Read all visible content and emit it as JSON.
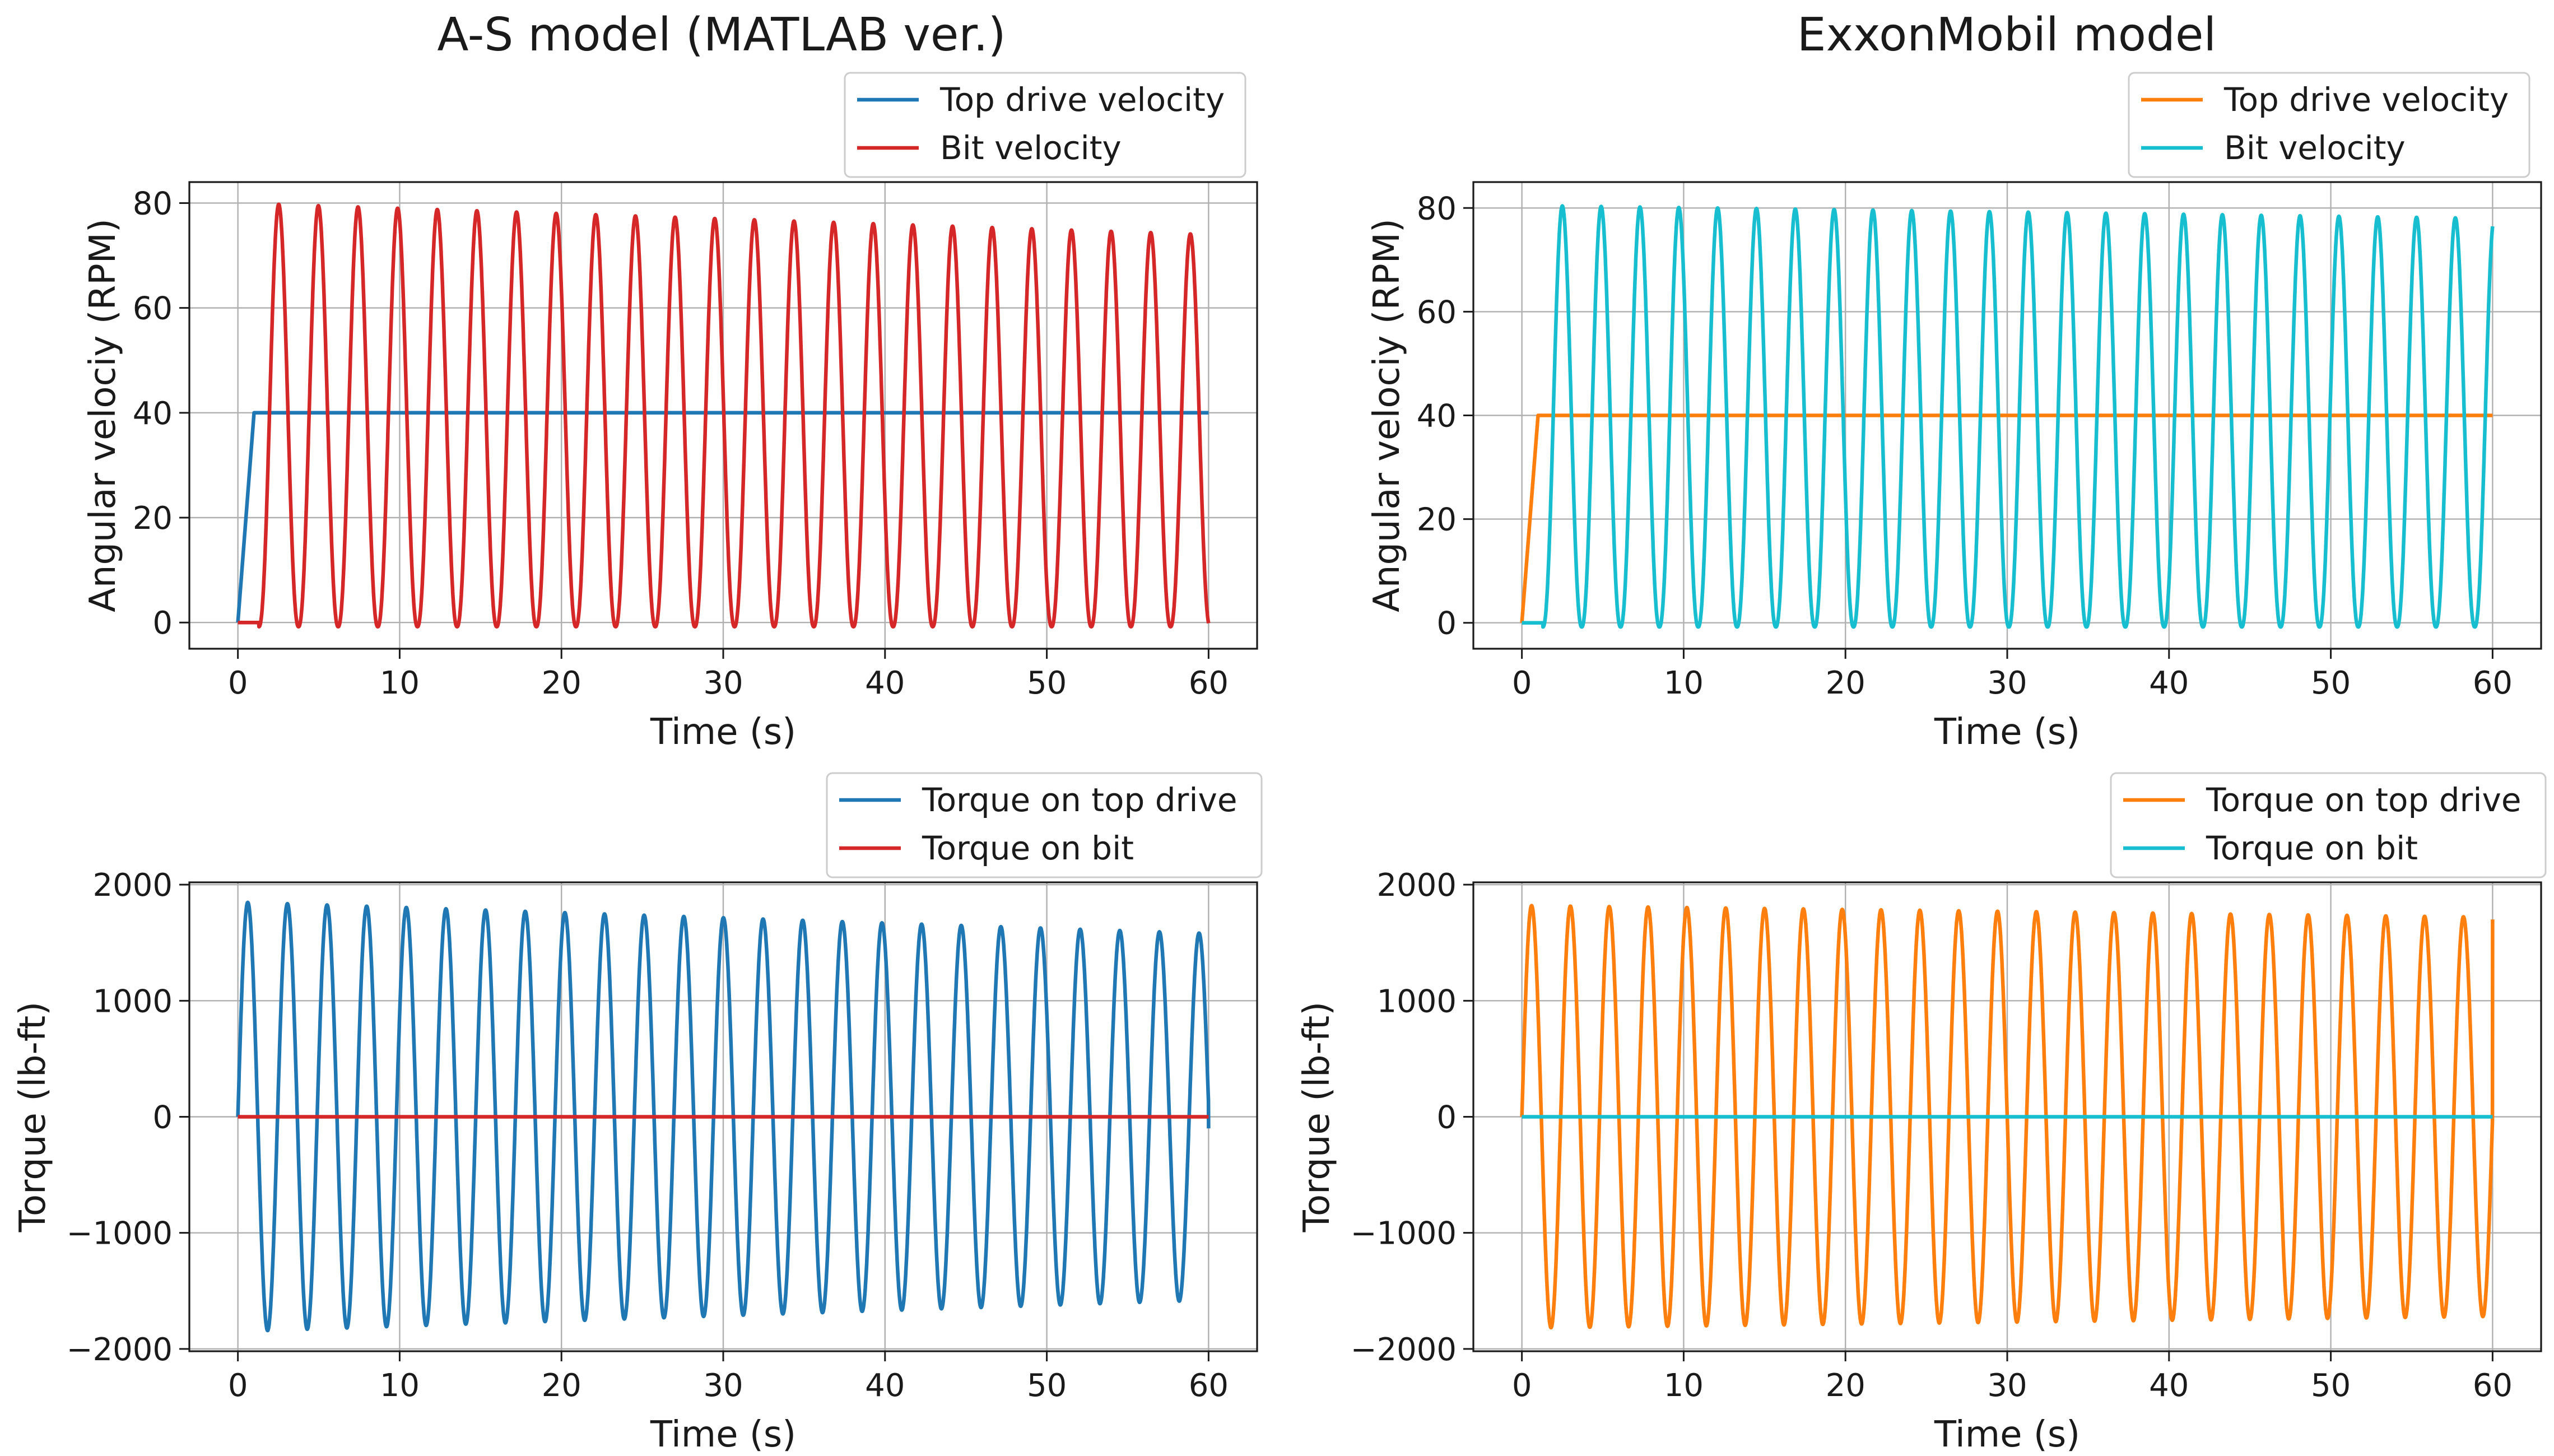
{
  "figure": {
    "column_titles": [
      "A-S model (MATLAB ver.)",
      "ExxonMobil model"
    ]
  },
  "chart_data": [
    {
      "id": "as_velocity",
      "type": "line",
      "title": "A-S model (MATLAB ver.)",
      "xlabel": "Time (s)",
      "ylabel": "Angular velociy (RPM)",
      "xlim": [
        -3,
        63
      ],
      "ylim": [
        -5,
        84
      ],
      "xticks": [
        0,
        10,
        20,
        30,
        40,
        50,
        60
      ],
      "yticks": [
        0,
        20,
        40,
        60,
        80
      ],
      "grid": true,
      "legend_position": "top-right, above plot",
      "series": [
        {
          "name": "Top drive velocity",
          "color": "#1f77b4",
          "kind": "ramp",
          "ramp_end": 1.0,
          "level": 40,
          "x_end": 60
        },
        {
          "name": "Bit velocity",
          "color": "#d62728",
          "kind": "bit_velocity",
          "start_delay": 1.3,
          "period": 2.45,
          "amplitude_start": 80,
          "amplitude_end": 74,
          "minimum": -0.8,
          "x_end": 60
        }
      ]
    },
    {
      "id": "exxon_velocity",
      "type": "line",
      "title": "ExxonMobil model",
      "xlabel": "Time (s)",
      "ylabel": "Angular velociy (RPM)",
      "xlim": [
        -3,
        63
      ],
      "ylim": [
        -5,
        85
      ],
      "xticks": [
        0,
        10,
        20,
        30,
        40,
        50,
        60
      ],
      "yticks": [
        0,
        20,
        40,
        60,
        80
      ],
      "grid": true,
      "legend_position": "top-right, above plot",
      "series": [
        {
          "name": "Top drive velocity",
          "color": "#ff7f0e",
          "kind": "ramp",
          "ramp_end": 1.0,
          "level": 40,
          "x_end": 60
        },
        {
          "name": "Bit velocity",
          "color": "#17becf",
          "kind": "bit_velocity",
          "start_delay": 1.3,
          "period": 2.4,
          "amplitude_start": 80.5,
          "amplitude_end": 78,
          "minimum": -0.8,
          "x_end": 60
        }
      ]
    },
    {
      "id": "as_torque",
      "type": "line",
      "title": "",
      "xlabel": "Time (s)",
      "ylabel": "Torque (lb-ft)",
      "xlim": [
        -3,
        63
      ],
      "ylim": [
        -2020,
        2020
      ],
      "xticks": [
        0,
        10,
        20,
        30,
        40,
        50,
        60
      ],
      "yticks": [
        -2000,
        -1000,
        0,
        1000,
        2000
      ],
      "ytick_labels": [
        "−2000",
        "−1000",
        "0",
        "1000",
        "2000"
      ],
      "grid": true,
      "legend_position": "top-right, above plot",
      "series": [
        {
          "name": "Torque on top drive",
          "color": "#1f77b4",
          "kind": "torque",
          "period": 2.45,
          "amplitude_start": 1850,
          "amplitude_end": 1580,
          "x_end": 60,
          "end_value": -100
        },
        {
          "name": "Torque on bit",
          "color": "#d62728",
          "kind": "constant",
          "level": 0,
          "x_end": 60
        }
      ]
    },
    {
      "id": "exxon_torque",
      "type": "line",
      "title": "",
      "xlabel": "Time (s)",
      "ylabel": "Torque (lb-ft)",
      "xlim": [
        -3,
        63
      ],
      "ylim": [
        -2020,
        2020
      ],
      "xticks": [
        0,
        10,
        20,
        30,
        40,
        50,
        60
      ],
      "yticks": [
        -2000,
        -1000,
        0,
        1000,
        2000
      ],
      "ytick_labels": [
        "−2000",
        "−1000",
        "0",
        "1000",
        "2000"
      ],
      "grid": true,
      "legend_position": "top-right, above plot",
      "series": [
        {
          "name": "Torque on top drive",
          "color": "#ff7f0e",
          "kind": "torque",
          "period": 2.4,
          "amplitude_start": 1820,
          "amplitude_end": 1720,
          "x_end": 60,
          "end_value": 1700
        },
        {
          "name": "Torque on bit",
          "color": "#17becf",
          "kind": "constant",
          "level": 0,
          "x_end": 60
        }
      ]
    }
  ]
}
